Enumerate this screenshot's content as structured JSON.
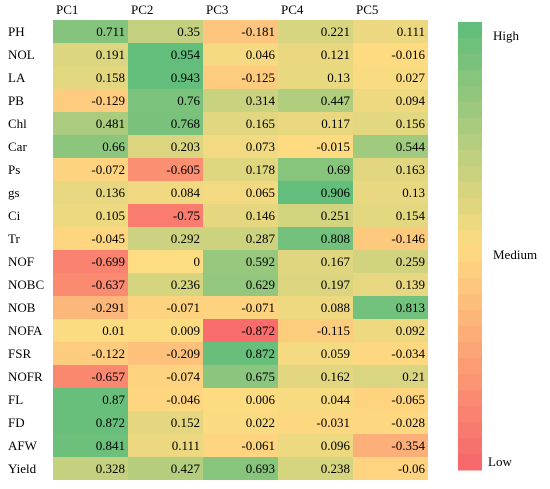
{
  "chart_data": {
    "type": "heatmap",
    "columns": [
      "PC1",
      "PC2",
      "PC3",
      "PC4",
      "PC5"
    ],
    "rows": [
      "PH",
      "NOL",
      "LA",
      "PB",
      "Chl",
      "Car",
      "Ps",
      "gs",
      "Ci",
      "Tr",
      "NOF",
      "NOBC",
      "NOB",
      "NOFA",
      "FSR",
      "NOFR",
      "FL",
      "FD",
      "AFW",
      "Yield"
    ],
    "values": [
      [
        0.711,
        0.35,
        -0.181,
        0.221,
        0.111
      ],
      [
        0.191,
        0.954,
        0.046,
        0.121,
        -0.016
      ],
      [
        0.158,
        0.943,
        -0.125,
        0.13,
        0.027
      ],
      [
        -0.129,
        0.76,
        0.314,
        0.447,
        0.094
      ],
      [
        0.481,
        0.768,
        0.165,
        0.117,
        0.156
      ],
      [
        0.66,
        0.203,
        0.073,
        -0.015,
        0.544
      ],
      [
        -0.072,
        -0.605,
        0.178,
        0.69,
        0.163
      ],
      [
        0.136,
        0.084,
        0.065,
        0.906,
        0.13
      ],
      [
        0.105,
        -0.75,
        0.146,
        0.251,
        0.154
      ],
      [
        -0.045,
        0.292,
        0.287,
        0.808,
        -0.146
      ],
      [
        -0.699,
        0,
        0.592,
        0.167,
        0.259
      ],
      [
        -0.637,
        0.236,
        0.629,
        0.197,
        0.139
      ],
      [
        -0.291,
        -0.071,
        -0.071,
        0.088,
        0.813
      ],
      [
        0.01,
        0.009,
        -0.872,
        -0.115,
        0.092
      ],
      [
        -0.122,
        -0.209,
        0.872,
        0.059,
        -0.034
      ],
      [
        -0.657,
        -0.074,
        0.675,
        0.162,
        0.21
      ],
      [
        0.87,
        -0.046,
        0.006,
        0.044,
        -0.065
      ],
      [
        0.872,
        0.152,
        0.022,
        -0.031,
        -0.028
      ],
      [
        0.841,
        0.111,
        -0.061,
        0.096,
        -0.354
      ],
      [
        0.328,
        0.427,
        0.693,
        0.238,
        -0.06
      ]
    ],
    "color_range": [
      -0.9,
      0.9
    ],
    "colors": {
      "high": "#63BE7B",
      "medium": "#FEDC81",
      "low": "#F8696B"
    },
    "legend": {
      "position": "right",
      "labels": {
        "high": "High",
        "medium": "Medium",
        "low": "Low"
      }
    }
  }
}
